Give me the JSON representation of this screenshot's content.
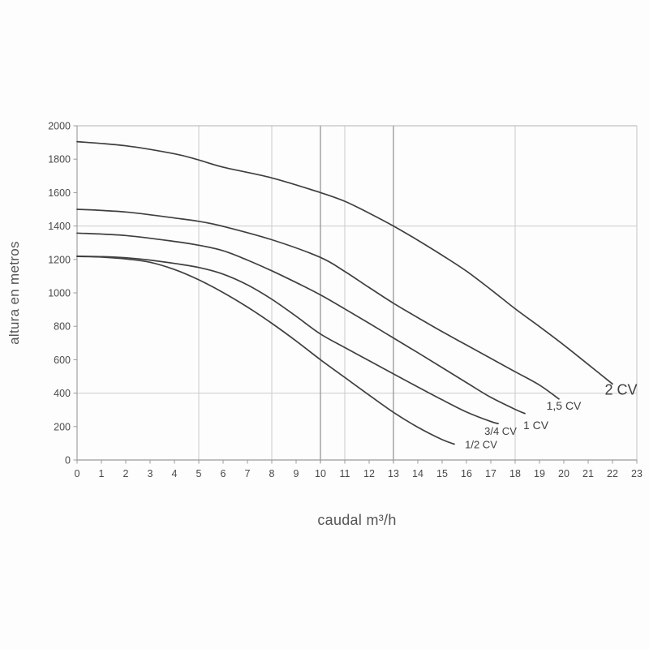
{
  "chart_data": {
    "type": "line",
    "title": "",
    "xlabel": "caudal m³/h",
    "ylabel": "altura en metros",
    "xlim": [
      0,
      23
    ],
    "ylim": [
      0,
      2000
    ],
    "x_ticks": [
      0,
      1,
      2,
      3,
      4,
      5,
      6,
      7,
      8,
      9,
      10,
      11,
      12,
      13,
      14,
      15,
      16,
      17,
      18,
      19,
      20,
      21,
      22,
      23
    ],
    "y_ticks": [
      0,
      200,
      400,
      600,
      800,
      1000,
      1200,
      1400,
      1600,
      1800,
      2000
    ],
    "grid": {
      "vertical_light": [
        5,
        8,
        11,
        18
      ],
      "vertical_dark": [
        10,
        13
      ],
      "horizontal_light": [
        400,
        1400
      ]
    },
    "legend_position": "curve-end-labels",
    "series": [
      {
        "name": "1/2 CV",
        "label_at": [
          16.6,
          70
        ],
        "label_size": 13,
        "points": [
          [
            0,
            1218
          ],
          [
            1,
            1214
          ],
          [
            2,
            1203
          ],
          [
            3,
            1183
          ],
          [
            4,
            1140
          ],
          [
            5,
            1078
          ],
          [
            6,
            1002
          ],
          [
            7,
            915
          ],
          [
            8,
            818
          ],
          [
            9,
            712
          ],
          [
            10,
            600
          ],
          [
            11,
            494
          ],
          [
            12,
            388
          ],
          [
            13,
            285
          ],
          [
            14,
            196
          ],
          [
            15,
            122
          ],
          [
            15.5,
            95
          ]
        ]
      },
      {
        "name": "3/4 CV",
        "label_at": [
          17.4,
          150
        ],
        "label_size": 13,
        "points": [
          [
            0,
            1220
          ],
          [
            1,
            1217
          ],
          [
            2,
            1210
          ],
          [
            3,
            1196
          ],
          [
            4,
            1176
          ],
          [
            5,
            1152
          ],
          [
            6,
            1112
          ],
          [
            7,
            1048
          ],
          [
            8,
            962
          ],
          [
            9,
            860
          ],
          [
            10,
            754
          ],
          [
            11,
            673
          ],
          [
            12,
            594
          ],
          [
            13,
            515
          ],
          [
            14,
            437
          ],
          [
            15,
            360
          ],
          [
            16,
            287
          ],
          [
            17,
            230
          ],
          [
            17.3,
            218
          ]
        ]
      },
      {
        "name": "1 CV",
        "label_at": [
          18.85,
          185
        ],
        "label_size": 14,
        "points": [
          [
            0,
            1358
          ],
          [
            2,
            1343
          ],
          [
            4,
            1308
          ],
          [
            5,
            1285
          ],
          [
            6,
            1252
          ],
          [
            7,
            1196
          ],
          [
            8,
            1132
          ],
          [
            9,
            1062
          ],
          [
            10,
            988
          ],
          [
            11,
            904
          ],
          [
            12,
            818
          ],
          [
            13,
            730
          ],
          [
            14,
            642
          ],
          [
            15,
            553
          ],
          [
            16,
            463
          ],
          [
            17,
            375
          ],
          [
            18,
            303
          ],
          [
            18.4,
            278
          ]
        ]
      },
      {
        "name": "1,5 CV",
        "label_at": [
          20.0,
          300
        ],
        "label_size": 14,
        "points": [
          [
            0,
            1500
          ],
          [
            2,
            1484
          ],
          [
            4,
            1448
          ],
          [
            5,
            1428
          ],
          [
            6,
            1398
          ],
          [
            8,
            1318
          ],
          [
            10,
            1212
          ],
          [
            11,
            1128
          ],
          [
            12,
            1032
          ],
          [
            13,
            938
          ],
          [
            14,
            852
          ],
          [
            15,
            768
          ],
          [
            16,
            688
          ],
          [
            17,
            608
          ],
          [
            18,
            528
          ],
          [
            19,
            448
          ],
          [
            19.8,
            365
          ]
        ]
      },
      {
        "name": "2 CV",
        "label_at": [
          22.35,
          390
        ],
        "label_size": 18,
        "points": [
          [
            0,
            1905
          ],
          [
            2,
            1880
          ],
          [
            4,
            1832
          ],
          [
            5,
            1795
          ],
          [
            6,
            1752
          ],
          [
            8,
            1688
          ],
          [
            10,
            1600
          ],
          [
            11,
            1548
          ],
          [
            12,
            1477
          ],
          [
            13,
            1400
          ],
          [
            14,
            1315
          ],
          [
            15,
            1225
          ],
          [
            16,
            1130
          ],
          [
            17,
            1020
          ],
          [
            18,
            905
          ],
          [
            19,
            798
          ],
          [
            20,
            688
          ],
          [
            21,
            572
          ],
          [
            22,
            455
          ]
        ]
      }
    ],
    "colors": {
      "curve": "#3f3f3f",
      "grid_light": "#cccccc",
      "grid_dark": "#8f8f8f",
      "axis": "#9a9a9a",
      "border_top": "#b2b2b2",
      "border_right": "#c4c4c4",
      "tick_text": "#4a4a4a",
      "axis_title_text": "#555555",
      "background": "#fdfdfd"
    }
  }
}
